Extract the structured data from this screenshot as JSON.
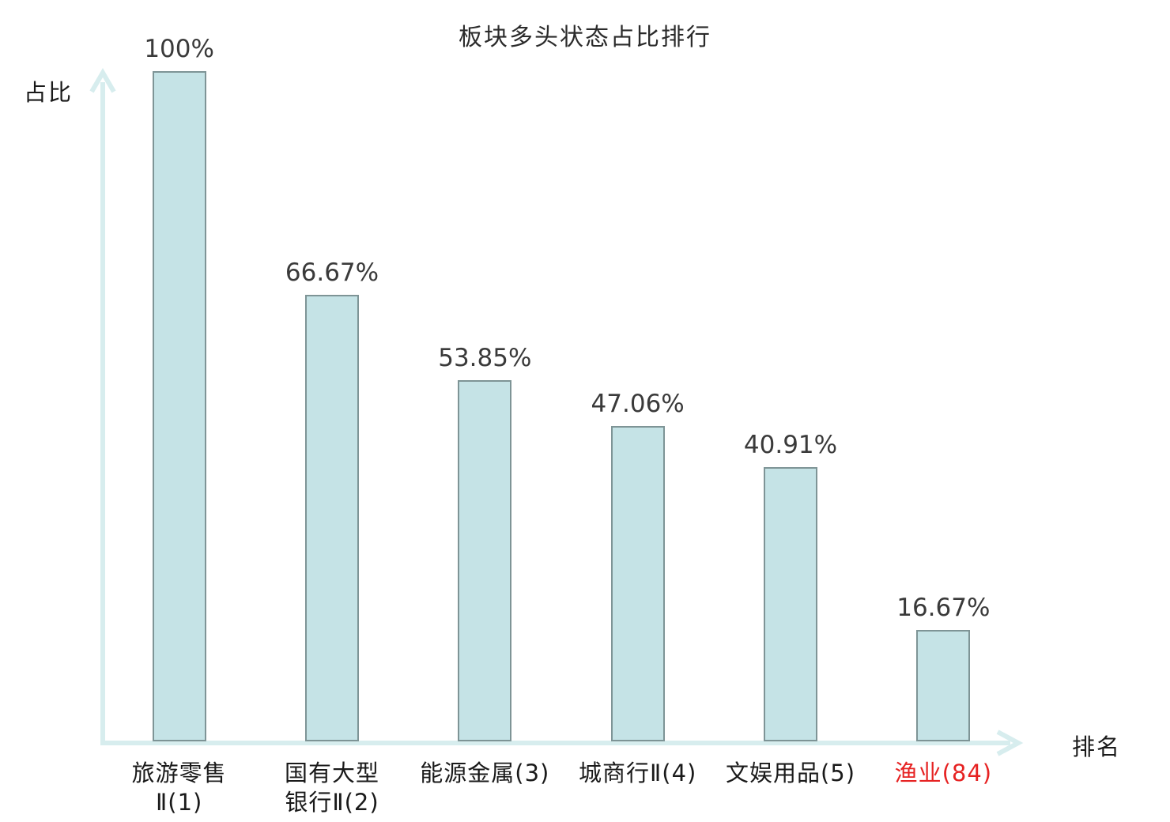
{
  "chart_data": {
    "type": "bar",
    "title": "板块多头状态占比排行",
    "xlabel": "排名",
    "ylabel": "占比",
    "ylim": [
      0,
      100
    ],
    "grid": false,
    "legend": "none",
    "categories": [
      "旅游零售\nⅡ(1)",
      "国有大型\n银行Ⅱ(2)",
      "能源金属(3)",
      "城商行Ⅱ(4)",
      "文娱用品(5)",
      "渔业(84)"
    ],
    "values": [
      100,
      66.67,
      53.85,
      47.06,
      40.91,
      16.67
    ],
    "bars": [
      {
        "category": "旅游零售\nⅡ(1)",
        "value": 100,
        "value_label": "100%",
        "category_color": "#1a1a1a"
      },
      {
        "category": "国有大型\n银行Ⅱ(2)",
        "value": 66.67,
        "value_label": "66.67%",
        "category_color": "#1a1a1a"
      },
      {
        "category": "能源金属(3)",
        "value": 53.85,
        "value_label": "53.85%",
        "category_color": "#1a1a1a"
      },
      {
        "category": "城商行Ⅱ(4)",
        "value": 47.06,
        "value_label": "47.06%",
        "category_color": "#1a1a1a"
      },
      {
        "category": "文娱用品(5)",
        "value": 40.91,
        "value_label": "40.91%",
        "category_color": "#1a1a1a"
      },
      {
        "category": "渔业(84)",
        "value": 16.67,
        "value_label": "16.67%",
        "category_color": "#e62222"
      }
    ],
    "colors": {
      "bar_fill": "#c5e3e6",
      "bar_border": "#7e9496",
      "axis": "#d7edee",
      "value_label": "#3a3a3a",
      "title": "#2b2b2b",
      "axis_title": "#1a1a1a",
      "highlight_category": "#e62222"
    }
  }
}
